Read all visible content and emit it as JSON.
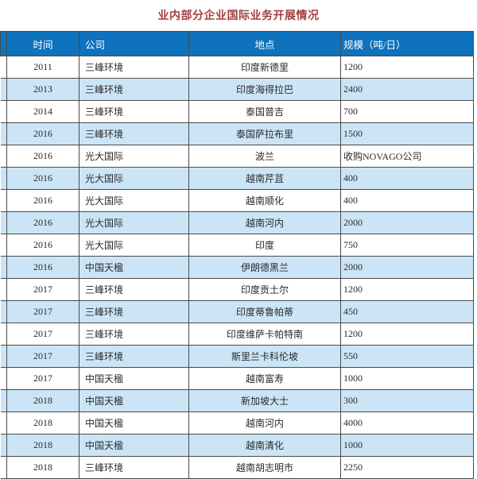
{
  "title": "业内部分企业国际业务开展情况",
  "table": {
    "headers": [
      "时间",
      "公司",
      "地点",
      "规模（吨/日）"
    ],
    "rows": [
      [
        "2011",
        "三峰环境",
        "印度新德里",
        "1200"
      ],
      [
        "2013",
        "三峰环境",
        "印度海得拉巴",
        "2400"
      ],
      [
        "2014",
        "三峰环境",
        "泰国普吉",
        "700"
      ],
      [
        "2016",
        "三峰环境",
        "泰国萨拉布里",
        "1500"
      ],
      [
        "2016",
        "光大国际",
        "波兰",
        "收购NOVAGO公司"
      ],
      [
        "2016",
        "光大国际",
        "越南芹苴",
        "400"
      ],
      [
        "2016",
        "光大国际",
        "越南顺化",
        "400"
      ],
      [
        "2016",
        "光大国际",
        "越南河内",
        "2000"
      ],
      [
        "2016",
        "光大国际",
        "印度",
        "750"
      ],
      [
        "2016",
        "中国天楹",
        "伊朗德黑兰",
        "2000"
      ],
      [
        "2017",
        "三峰环境",
        "印度贡土尔",
        "1200"
      ],
      [
        "2017",
        "三峰环境",
        "印度蒂鲁帕蒂",
        "450"
      ],
      [
        "2017",
        "三峰环境",
        "印度维萨卡帕特南",
        "1200"
      ],
      [
        "2017",
        "三峰环境",
        "斯里兰卡科伦坡",
        "550"
      ],
      [
        "2017",
        "中国天楹",
        "越南富寿",
        "1000"
      ],
      [
        "2018",
        "中国天楹",
        "新加坡大士",
        "300"
      ],
      [
        "2018",
        "中国天楹",
        "越南河内",
        "4000"
      ],
      [
        "2018",
        "中国天楹",
        "越南清化",
        "1000"
      ],
      [
        "2018",
        "三峰环境",
        "越南胡志明市",
        "2250"
      ]
    ]
  },
  "colors": {
    "header_bg": "#0e72bc",
    "stripe_bg": "#cbe5f7",
    "border": "#4a4a4a",
    "title": "#a2403e"
  }
}
